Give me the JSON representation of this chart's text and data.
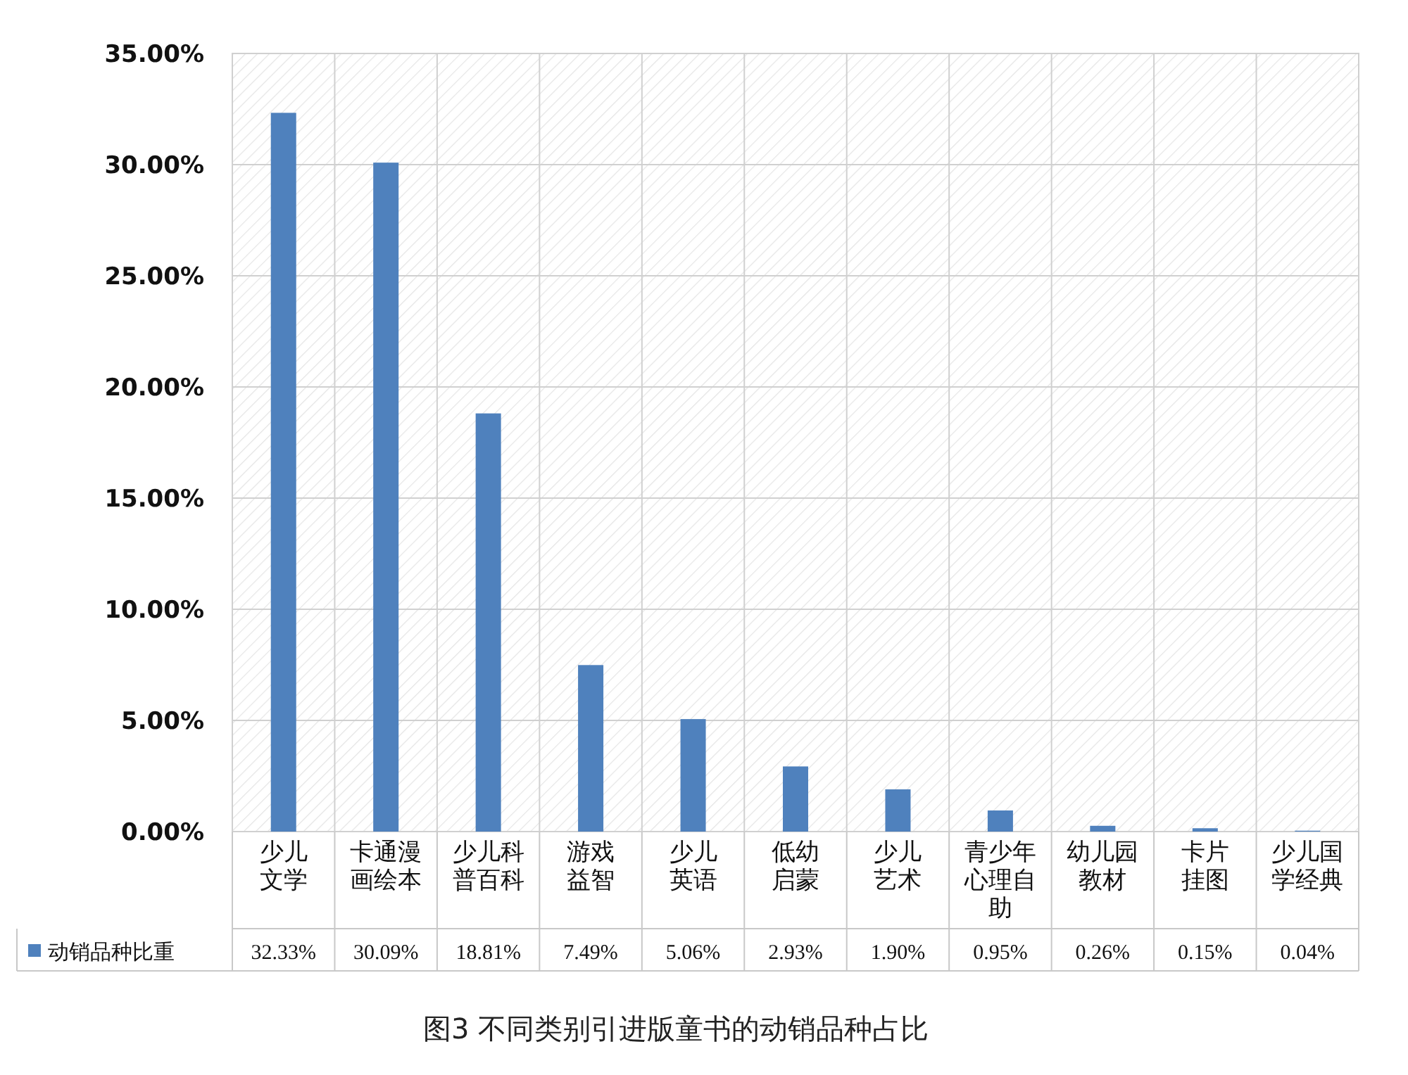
{
  "chart_data": {
    "type": "bar",
    "title": "图3 不同类别引进版童书的动销品种占比",
    "categories": [
      "少儿文学",
      "卡通漫画绘本",
      "少儿科普百科",
      "游戏益智",
      "少儿英语",
      "低幼启蒙",
      "少儿艺术",
      "青少年心理自助",
      "幼儿园教材",
      "卡片挂图",
      "少儿国学经典"
    ],
    "series": [
      {
        "name": "动销品种比重",
        "color": "#4f81bd",
        "values": [
          32.33,
          30.09,
          18.81,
          7.49,
          5.06,
          2.93,
          1.9,
          0.95,
          0.26,
          0.15,
          0.04
        ],
        "value_labels": [
          "32.33%",
          "30.09%",
          "18.81%",
          "7.49%",
          "5.06%",
          "2.93%",
          "1.90%",
          "0.95%",
          "0.26%",
          "0.15%",
          "0.04%"
        ]
      }
    ],
    "ylim": [
      0,
      35
    ],
    "yticks": [
      {
        "value": 0,
        "label": "0.00%"
      },
      {
        "value": 5,
        "label": "5.00%"
      },
      {
        "value": 10,
        "label": "10.00%"
      },
      {
        "value": 15,
        "label": "15.00%"
      },
      {
        "value": 20,
        "label": "20.00%"
      },
      {
        "value": 25,
        "label": "25.00%"
      },
      {
        "value": 30,
        "label": "30.00%"
      },
      {
        "value": 35,
        "label": "35.00%"
      }
    ],
    "grid": true,
    "legend": "bottom",
    "data_labels": true
  }
}
